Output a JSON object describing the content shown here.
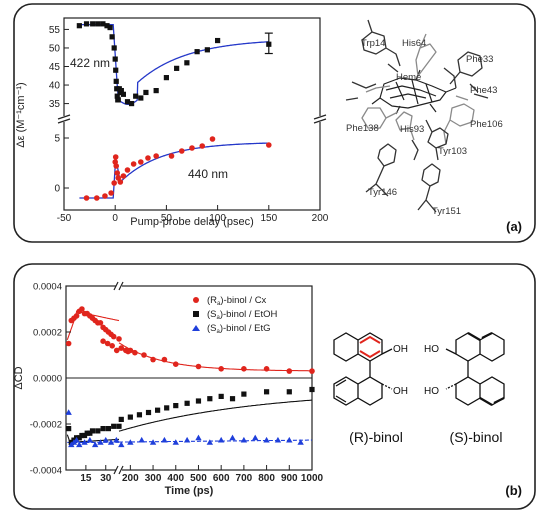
{
  "panel_a": {
    "tag": "(a)",
    "label_422": "422 nm",
    "label_440": "440 nm",
    "residues": [
      "Trp14",
      "His64",
      "Phe33",
      "Phe43",
      "Heme",
      "Phe138",
      "His93",
      "Phe106",
      "Tyr103",
      "Tyr146",
      "Tyr151"
    ]
  },
  "panel_b": {
    "tag": "(b)",
    "mol_r": "(R)-binol",
    "mol_s": "(S)-binol"
  },
  "chart_data": [
    {
      "type": "scatter",
      "title": "",
      "xlabel": "Pump-probe delay (psec)",
      "ylabel": "Δε (M⁻¹cm⁻¹)",
      "xlim": [
        -50,
        200
      ],
      "xticks": [
        -50,
        0,
        50,
        100,
        150,
        200
      ],
      "xticklabels": [
        "-50",
        "0",
        "50",
        "100",
        "150",
        "200"
      ],
      "upper_yticks": [
        35,
        40,
        45,
        50,
        55
      ],
      "lower_yticks": [
        0,
        5
      ],
      "series": [
        {
          "name": "422 nm",
          "marker": "square",
          "color": "#111111",
          "x": [
            -35,
            -28,
            -22,
            -17,
            -12,
            -8,
            -5,
            -3,
            -1,
            0,
            0.5,
            1,
            1.5,
            2,
            2.5,
            3,
            4,
            5,
            6,
            8,
            12,
            16,
            20,
            25,
            30,
            40,
            50,
            60,
            70,
            80,
            90,
            100,
            150
          ],
          "y": [
            56,
            56.5,
            56.5,
            56.5,
            56.5,
            56,
            55.5,
            53,
            50,
            47,
            44,
            41,
            39,
            37,
            36,
            36,
            39,
            38,
            38.5,
            37.5,
            35.5,
            35,
            37,
            36.5,
            38,
            38.5,
            42,
            44.5,
            46,
            49,
            49.5,
            52,
            51
          ]
        },
        {
          "name": "440 nm",
          "marker": "circle",
          "color": "#e0251d",
          "x": [
            -28,
            -18,
            -10,
            -4,
            -1,
            0,
            0.5,
            1,
            2,
            3,
            5,
            8,
            12,
            18,
            25,
            32,
            40,
            55,
            65,
            75,
            85,
            95,
            150
          ],
          "y": [
            -1,
            -1,
            -0.8,
            -0.5,
            0.5,
            2.6,
            3.1,
            2.2,
            1.5,
            1,
            0.6,
            1.2,
            1.8,
            2.4,
            2.6,
            3,
            3.2,
            3.2,
            3.7,
            4,
            4.2,
            4.9,
            4.3
          ]
        }
      ]
    },
    {
      "type": "scatter",
      "title": "",
      "xlabel": "Time (ps)",
      "ylabel": "ΔCD",
      "ylim": [
        -0.0004,
        0.0004
      ],
      "yticks": [
        -0.0004,
        -0.0002,
        0.0,
        0.0002,
        0.0004
      ],
      "yticklabels": [
        "-0.0004",
        "-0.0002",
        "0.0000",
        "0.0002",
        "0.0004"
      ],
      "xticks": [
        15,
        30,
        200,
        300,
        400,
        500,
        600,
        700,
        800,
        900,
        1000
      ],
      "xticklabels": [
        "15",
        "30",
        "200",
        "300",
        "400",
        "500",
        "600",
        "700",
        "800",
        "900",
        "1000"
      ],
      "legend_position": "top-right",
      "series": [
        {
          "name": "(R)-binol / Cx",
          "name_prefix": "(R",
          "name_sub": "a",
          "name_suffix": ")-binol / Cx",
          "marker": "circle",
          "color": "#e0251d",
          "x": [
            2,
            4,
            6,
            8,
            10,
            12,
            14,
            16,
            18,
            20,
            22,
            24,
            26,
            28,
            30,
            32,
            34,
            36,
            40,
            80,
            100,
            120,
            140,
            160,
            180,
            190,
            200,
            220,
            260,
            300,
            350,
            400,
            500,
            600,
            700,
            800,
            900,
            1000
          ],
          "y": [
            0.00015,
            0.00025,
            0.00026,
            0.00027,
            0.00029,
            0.0003,
            0.00028,
            0.00028,
            0.00027,
            0.00026,
            0.00025,
            0.00024,
            0.00024,
            0.00022,
            0.00021,
            0.0002,
            0.00019,
            0.00018,
            0.00017,
            0.00016,
            0.00015,
            0.00014,
            0.00012,
            0.00013,
            0.00012,
            0.000115,
            0.00012,
            0.00011,
            0.0001,
            8e-05,
            8e-05,
            6e-05,
            5e-05,
            4e-05,
            4e-05,
            4e-05,
            3e-05,
            3e-05
          ]
        },
        {
          "name": "(S)-binol / EtOH",
          "name_prefix": "(S",
          "name_sub": "a",
          "name_suffix": ")-binol / EtOH",
          "marker": "square",
          "color": "#111111",
          "x": [
            2,
            4,
            6,
            8,
            10,
            12,
            14,
            16,
            18,
            20,
            24,
            28,
            32,
            36,
            40,
            160,
            200,
            240,
            280,
            320,
            360,
            400,
            450,
            500,
            550,
            600,
            650,
            700,
            800,
            900,
            1000
          ],
          "y": [
            -0.00022,
            -0.00028,
            -0.00027,
            -0.00026,
            -0.00026,
            -0.00025,
            -0.00025,
            -0.00024,
            -0.00024,
            -0.00023,
            -0.00023,
            -0.00022,
            -0.00022,
            -0.00021,
            -0.00021,
            -0.00018,
            -0.00017,
            -0.00016,
            -0.00015,
            -0.00014,
            -0.00013,
            -0.00012,
            -0.00011,
            -0.0001,
            -9e-05,
            -8e-05,
            -9e-05,
            -7e-05,
            -6e-05,
            -6e-05,
            -5e-05
          ]
        },
        {
          "name": "(S)-binol / EtG",
          "name_prefix": "(S",
          "name_sub": "a",
          "name_suffix": ")-binol / EtG",
          "marker": "triangle",
          "color": "#1f3fdb",
          "x": [
            2,
            4,
            6,
            8,
            10,
            14,
            18,
            22,
            26,
            30,
            34,
            38,
            160,
            200,
            250,
            300,
            350,
            400,
            450,
            500,
            550,
            600,
            650,
            700,
            750,
            800,
            850,
            900,
            950
          ],
          "y": [
            -0.00015,
            -0.00029,
            -0.00028,
            -0.00027,
            -0.00029,
            -0.00028,
            -0.00027,
            -0.00029,
            -0.00028,
            -0.00027,
            -0.00028,
            -0.00027,
            -0.00029,
            -0.00028,
            -0.00027,
            -0.00028,
            -0.00027,
            -0.00028,
            -0.00027,
            -0.00026,
            -0.00028,
            -0.00027,
            -0.00026,
            -0.00027,
            -0.00026,
            -0.00027,
            -0.00027,
            -0.00027,
            -0.00028
          ]
        }
      ]
    }
  ]
}
